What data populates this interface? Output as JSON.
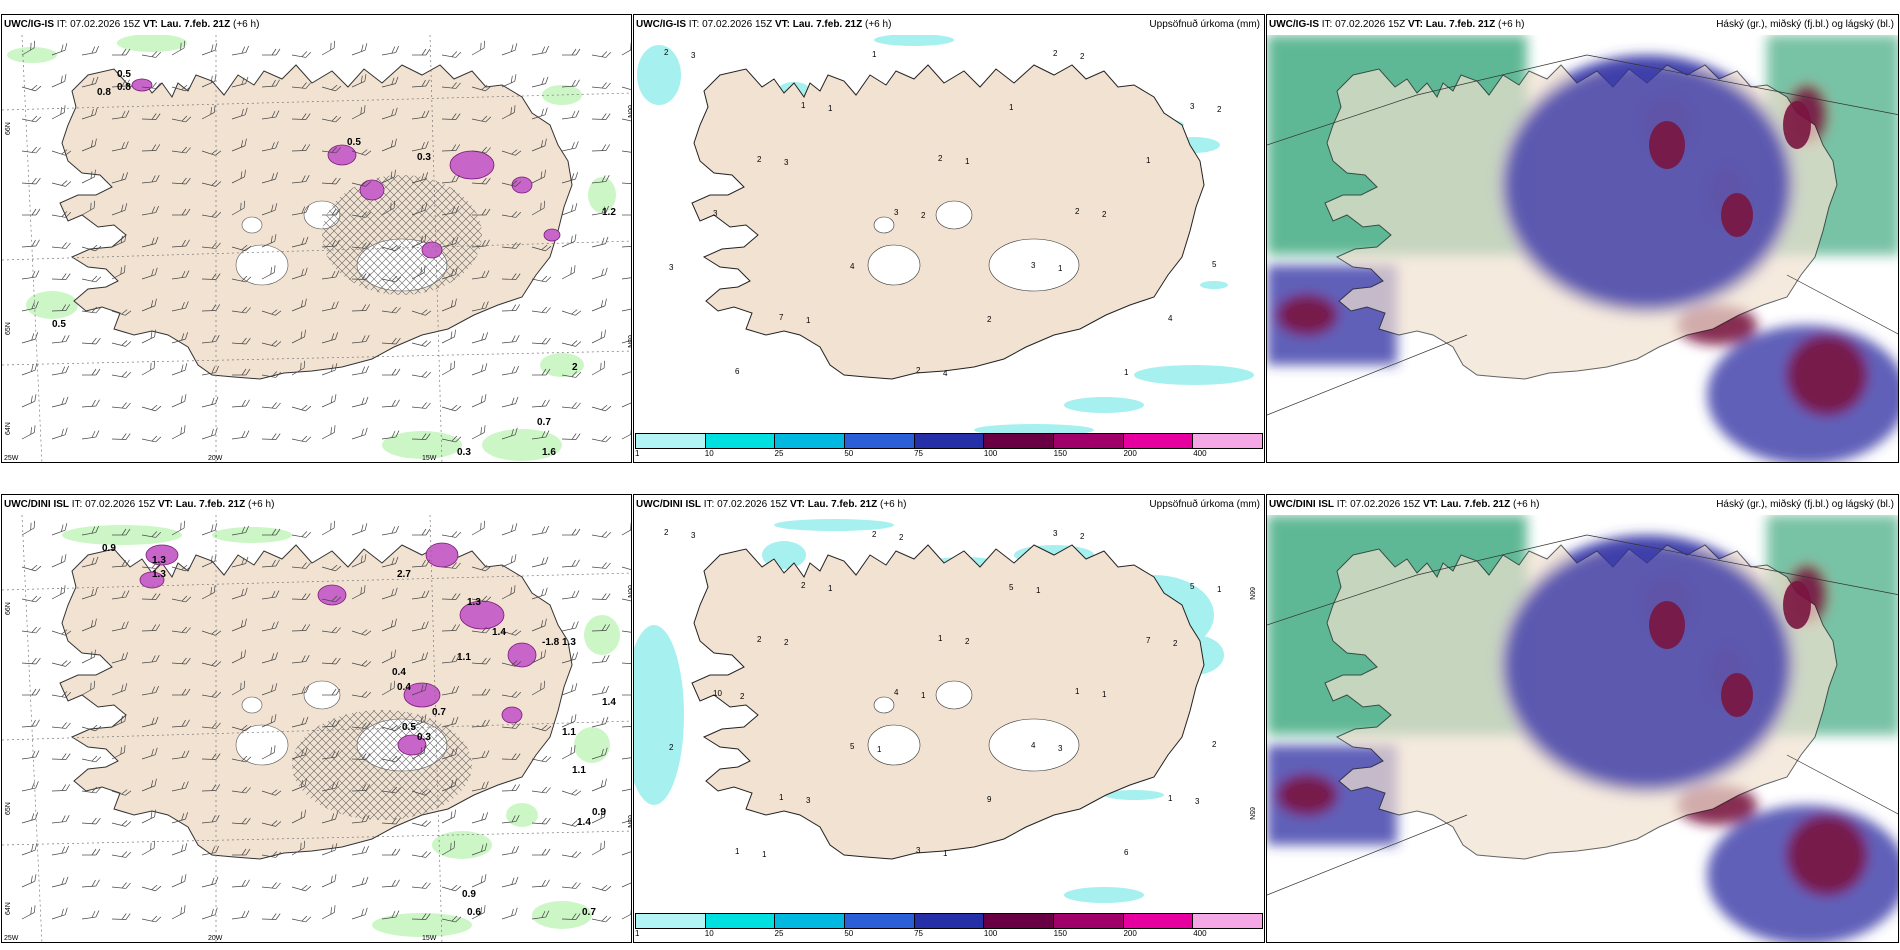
{
  "rows": [
    {
      "model": "UWC/IG-IS",
      "it_label": "IT:",
      "it_value": "07.02.2026 15Z",
      "vt_label": "VT:",
      "vt_value": "Lau. 7.feb. 21Z",
      "offset": "(+6 h)",
      "wind_panel": {
        "lat_labels": [
          "66N",
          "65N",
          "64N"
        ],
        "lat_labels_right": [
          "66N",
          "65N"
        ],
        "lon_labels": [
          "25W",
          "20W",
          "15W"
        ],
        "values": [
          "0.5",
          "0.8",
          "0.8",
          "0.5",
          "0.3",
          "1.2",
          "0.5",
          "2",
          "0.7",
          "1.6",
          "0.3"
        ]
      },
      "precip_panel": {
        "title": "Uppsöfnuð úrkoma (mm)",
        "values": [
          "2",
          "1",
          "2",
          "2",
          "5",
          "7",
          "2",
          "2",
          "3",
          "2",
          "3",
          "3",
          "4",
          "6",
          "1",
          "1",
          "1",
          "3",
          "4",
          "2",
          "1",
          "3",
          "1",
          "1",
          "2",
          "3",
          "1",
          "4",
          "2",
          "2",
          "3",
          "2",
          "1"
        ]
      },
      "cloud_panel": {
        "title": "Háský (gr.), miðský (fj.bl.) og lágský (bl.)"
      }
    },
    {
      "model": "UWC/DINI ISL",
      "it_label": "IT:",
      "it_value": "07.02.2026 15Z",
      "vt_label": "VT:",
      "vt_value": "Lau. 7.feb. 21Z",
      "offset": "(+6 h)",
      "wind_panel": {
        "lat_labels": [
          "66N",
          "65N",
          "64N"
        ],
        "lat_labels_right": [
          "66N",
          "65N"
        ],
        "lon_labels": [
          "25W",
          "20W",
          "15W"
        ],
        "values": [
          "0.9",
          "1.3",
          "1.3",
          "2.7",
          "1.3",
          "1.1",
          "1.4",
          "0.4",
          "0.4",
          "0.7",
          "0.5",
          "0.3",
          "1.1",
          "1.3",
          "1.4",
          "1.1",
          "0.9",
          "1.4",
          "0.9",
          "0.6",
          "0.7",
          "-1.8"
        ]
      },
      "precip_panel": {
        "title": "Uppsöfnuð úrkoma (mm)",
        "values": [
          "2",
          "2",
          "1",
          "1",
          "2",
          "1",
          "3",
          "3",
          "5",
          "2",
          "4",
          "4",
          "1",
          "1",
          "2",
          "5",
          "7",
          "10",
          "5",
          "9",
          "6",
          "3",
          "1",
          "2",
          "1",
          "2",
          "3",
          "1",
          "2",
          "1",
          "2",
          "1",
          "3",
          "3",
          "1",
          "2",
          "1",
          "2",
          "2",
          "1"
        ]
      },
      "cloud_panel": {
        "title": "Háský (gr.), miðský (fj.bl.) og lágský (bl.)"
      }
    }
  ],
  "legend": {
    "ticks": [
      "1",
      "10",
      "25",
      "50",
      "75",
      "100",
      "150",
      "200",
      "400"
    ],
    "colors": [
      "#b3f5f5",
      "#00e0e0",
      "#00b8e0",
      "#2a5fd8",
      "#2530a8",
      "#6a0044",
      "#a0006a",
      "#e600a0",
      "#f5a8e6"
    ]
  },
  "colors": {
    "land": "#f1e2d1",
    "precip": "#a6f0f0",
    "wind_precip": "#c7f5c0",
    "snow": "#c865c8",
    "high_cloud": "#1a9a6a",
    "mid_cloud": "#3a3aa8",
    "low_cloud": "#7a1540"
  }
}
